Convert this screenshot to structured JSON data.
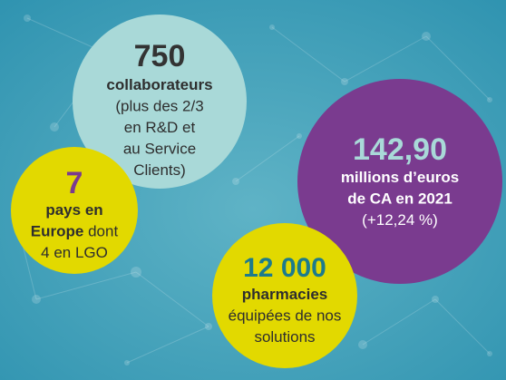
{
  "bubbles": [
    {
      "figure": "750",
      "figure_color": "#333333",
      "fill": "#a9d9d8",
      "lines": [
        [
          {
            "text": "collaborateurs",
            "bold": true
          }
        ],
        [
          {
            "text": "(plus des 2/3",
            "bold": false
          }
        ],
        [
          {
            "text": "en R&D et",
            "bold": false
          }
        ],
        [
          {
            "text": "au Service",
            "bold": false
          }
        ],
        [
          {
            "text": "Clients)",
            "bold": false
          }
        ]
      ],
      "text_color": "#2e2e2e"
    },
    {
      "figure": "7",
      "figure_color": "#7a3b8f",
      "fill": "#e2d900",
      "lines": [
        [
          {
            "text": "pays en",
            "bold": true
          }
        ],
        [
          {
            "text": "Europe",
            "bold": true
          },
          {
            "text": "dont",
            "bold": false
          }
        ],
        [
          {
            "text": "4 en LGO",
            "bold": false
          }
        ]
      ],
      "text_color": "#2e2e2e"
    },
    {
      "figure": "142,90",
      "figure_color": "#a9d9d8",
      "fill": "#7a3b8f",
      "lines": [
        [
          {
            "text": "millions d’euros",
            "bold": true
          }
        ],
        [
          {
            "text": "de CA en 2021",
            "bold": true
          }
        ],
        [
          {
            "text": "(+12,24 %)",
            "bold": false
          }
        ]
      ],
      "text_color": "#ffffff"
    },
    {
      "figure": "12 000",
      "figure_color": "#1d7b8c",
      "fill": "#e2d900",
      "lines": [
        [
          {
            "text": "pharmacies",
            "bold": true
          }
        ],
        [
          {
            "text": "équipées de nos",
            "bold": false
          }
        ],
        [
          {
            "text": "solutions",
            "bold": false
          }
        ]
      ],
      "text_color": "#2e2e2e"
    }
  ]
}
